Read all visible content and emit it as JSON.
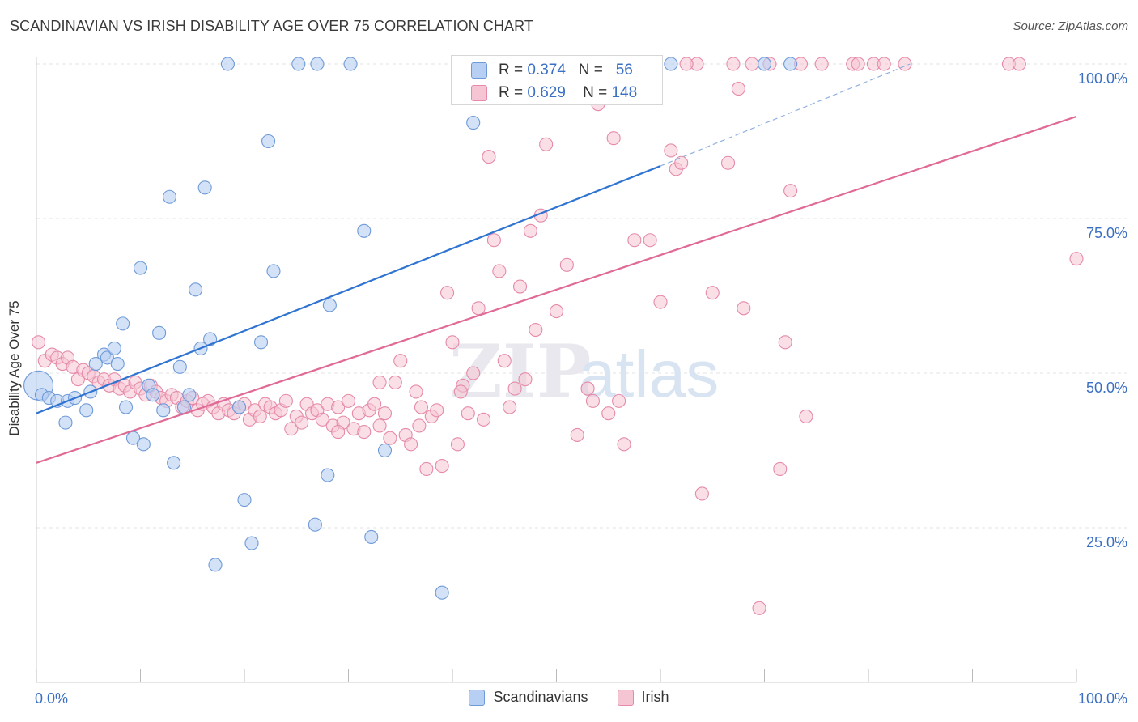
{
  "header": {
    "title": "SCANDINAVIAN VS IRISH DISABILITY AGE OVER 75 CORRELATION CHART",
    "source": "Source: ZipAtlas.com"
  },
  "stats": {
    "blue": {
      "r_label": "R =",
      "r_value": "0.374",
      "n_label": "N =",
      "n_value": "56"
    },
    "pink": {
      "r_label": "R =",
      "r_value": "0.629",
      "n_label": "N =",
      "n_value": "148"
    }
  },
  "legend": {
    "blue": "Scandinavians",
    "pink": "Irish"
  },
  "colors": {
    "blue_fill": "#b7cff2",
    "blue_stroke": "#6e9ad8",
    "blue_line": "#2f74d0",
    "pink_fill": "#f6c5d4",
    "pink_stroke": "#e58aa8",
    "pink_line": "#e06a96",
    "tick_label": "#3b6fc4",
    "grid": "#e3e3e3"
  },
  "chart_data": {
    "type": "scatter",
    "title": "SCANDINAVIAN VS IRISH DISABILITY AGE OVER 75 CORRELATION CHART",
    "xlabel": "",
    "ylabel": "Disability Age Over 75",
    "xlim": [
      0,
      100
    ],
    "ylim": [
      0,
      100
    ],
    "x_ticks": [
      "0.0%",
      "100.0%"
    ],
    "y_ticks": [
      "25.0%",
      "50.0%",
      "75.0%",
      "100.0%"
    ],
    "y_tick_values": [
      25,
      50,
      75,
      100
    ],
    "grid": "horizontal dashed",
    "legend_position": "bottom-center",
    "watermark": "ZIPatlas",
    "series": [
      {
        "name": "Scandinavians",
        "trend": {
          "x0": 0,
          "y0": 43.5,
          "x1": 60,
          "y1": 83.5,
          "dashed_to": [
            84,
            100
          ]
        },
        "points": [
          [
            0.2,
            48.0
          ],
          [
            0.5,
            46.5
          ],
          [
            1.2,
            46.0
          ],
          [
            2.0,
            45.5
          ],
          [
            3.0,
            45.5
          ],
          [
            3.7,
            46.0
          ],
          [
            5.2,
            47.0
          ],
          [
            2.8,
            42.0
          ],
          [
            4.8,
            44.0
          ],
          [
            5.7,
            51.5
          ],
          [
            6.5,
            53.0
          ],
          [
            6.8,
            52.5
          ],
          [
            7.5,
            54.0
          ],
          [
            7.8,
            51.5
          ],
          [
            8.3,
            58.0
          ],
          [
            8.6,
            44.5
          ],
          [
            9.3,
            39.5
          ],
          [
            10.0,
            67.0
          ],
          [
            10.3,
            38.5
          ],
          [
            10.8,
            48.0
          ],
          [
            11.2,
            46.5
          ],
          [
            11.8,
            56.5
          ],
          [
            12.2,
            44.0
          ],
          [
            12.8,
            78.5
          ],
          [
            13.2,
            35.5
          ],
          [
            13.8,
            51.0
          ],
          [
            14.2,
            44.5
          ],
          [
            14.7,
            46.5
          ],
          [
            15.3,
            63.5
          ],
          [
            15.8,
            54.0
          ],
          [
            16.2,
            80.0
          ],
          [
            16.7,
            55.5
          ],
          [
            17.2,
            19.0
          ],
          [
            18.4,
            100.0
          ],
          [
            19.5,
            44.5
          ],
          [
            20.0,
            29.5
          ],
          [
            20.7,
            22.5
          ],
          [
            21.6,
            55.0
          ],
          [
            22.3,
            87.5
          ],
          [
            22.8,
            66.5
          ],
          [
            25.2,
            100.0
          ],
          [
            27.0,
            100.0
          ],
          [
            26.8,
            25.5
          ],
          [
            28.0,
            33.5
          ],
          [
            28.2,
            61.0
          ],
          [
            30.2,
            100.0
          ],
          [
            31.5,
            73.0
          ],
          [
            32.2,
            23.5
          ],
          [
            33.5,
            37.5
          ],
          [
            39.0,
            14.5
          ],
          [
            42.0,
            90.5
          ],
          [
            51.5,
            100.0
          ],
          [
            55.0,
            100.0
          ],
          [
            61.0,
            100.0
          ],
          [
            70.0,
            100.0
          ],
          [
            72.5,
            100.0
          ]
        ]
      },
      {
        "name": "Irish",
        "trend": {
          "x0": 0,
          "y0": 35.5,
          "x1": 100,
          "y1": 91.5
        },
        "points": [
          [
            0.2,
            55.0
          ],
          [
            0.8,
            52.0
          ],
          [
            1.5,
            53.0
          ],
          [
            2.0,
            52.5
          ],
          [
            2.5,
            51.5
          ],
          [
            3.0,
            52.5
          ],
          [
            3.5,
            51.0
          ],
          [
            4.0,
            49.0
          ],
          [
            4.5,
            50.5
          ],
          [
            5.0,
            50.0
          ],
          [
            5.5,
            49.5
          ],
          [
            6.0,
            48.5
          ],
          [
            6.5,
            49.0
          ],
          [
            7.0,
            48.0
          ],
          [
            7.5,
            49.0
          ],
          [
            8.0,
            47.5
          ],
          [
            8.5,
            48.0
          ],
          [
            9.0,
            47.0
          ],
          [
            9.5,
            48.5
          ],
          [
            10.0,
            47.5
          ],
          [
            10.5,
            46.5
          ],
          [
            11.0,
            48.0
          ],
          [
            11.5,
            47.0
          ],
          [
            12.0,
            46.0
          ],
          [
            12.5,
            45.5
          ],
          [
            13.0,
            46.5
          ],
          [
            13.5,
            46.0
          ],
          [
            14.0,
            44.5
          ],
          [
            14.5,
            45.5
          ],
          [
            15.0,
            46.0
          ],
          [
            15.5,
            44.0
          ],
          [
            16.0,
            45.0
          ],
          [
            16.5,
            45.5
          ],
          [
            17.0,
            44.5
          ],
          [
            17.5,
            43.5
          ],
          [
            18.0,
            45.0
          ],
          [
            18.5,
            44.0
          ],
          [
            19.0,
            43.5
          ],
          [
            19.5,
            44.5
          ],
          [
            20.0,
            45.0
          ],
          [
            20.5,
            42.5
          ],
          [
            21.0,
            44.0
          ],
          [
            21.5,
            43.0
          ],
          [
            22.0,
            45.0
          ],
          [
            22.5,
            44.5
          ],
          [
            23.0,
            43.5
          ],
          [
            23.5,
            44.0
          ],
          [
            24.0,
            45.5
          ],
          [
            24.5,
            41.0
          ],
          [
            25.0,
            43.0
          ],
          [
            25.5,
            42.0
          ],
          [
            26.0,
            45.0
          ],
          [
            26.5,
            43.5
          ],
          [
            27.0,
            44.0
          ],
          [
            27.5,
            42.5
          ],
          [
            28.0,
            45.0
          ],
          [
            28.5,
            41.5
          ],
          [
            29.0,
            44.5
          ],
          [
            29.5,
            42.0
          ],
          [
            30.0,
            45.5
          ],
          [
            30.5,
            41.0
          ],
          [
            31.0,
            43.5
          ],
          [
            31.5,
            40.5
          ],
          [
            32.0,
            44.0
          ],
          [
            32.5,
            45.0
          ],
          [
            33.0,
            41.5
          ],
          [
            33.5,
            43.5
          ],
          [
            34.0,
            39.5
          ],
          [
            34.5,
            48.5
          ],
          [
            35.0,
            52.0
          ],
          [
            35.5,
            40.0
          ],
          [
            36.0,
            38.5
          ],
          [
            36.5,
            47.0
          ],
          [
            37.0,
            44.5
          ],
          [
            37.5,
            34.5
          ],
          [
            38.0,
            43.0
          ],
          [
            38.5,
            44.0
          ],
          [
            39.0,
            35.0
          ],
          [
            39.5,
            63.0
          ],
          [
            40.0,
            55.0
          ],
          [
            40.5,
            38.5
          ],
          [
            41.0,
            48.0
          ],
          [
            41.5,
            43.5
          ],
          [
            42.0,
            50.0
          ],
          [
            42.5,
            60.5
          ],
          [
            43.0,
            42.5
          ],
          [
            43.5,
            85.0
          ],
          [
            44.0,
            71.5
          ],
          [
            44.5,
            66.5
          ],
          [
            45.0,
            52.0
          ],
          [
            45.5,
            44.5
          ],
          [
            46.0,
            47.5
          ],
          [
            46.5,
            64.0
          ],
          [
            47.0,
            49.0
          ],
          [
            47.5,
            73.0
          ],
          [
            48.0,
            57.0
          ],
          [
            48.5,
            75.5
          ],
          [
            49.0,
            87.0
          ],
          [
            49.5,
            100.0
          ],
          [
            50.0,
            60.0
          ],
          [
            51.0,
            67.5
          ],
          [
            52.0,
            40.0
          ],
          [
            53.0,
            47.5
          ],
          [
            53.5,
            45.5
          ],
          [
            54.0,
            93.5
          ],
          [
            55.0,
            43.5
          ],
          [
            55.5,
            88.0
          ],
          [
            56.0,
            45.5
          ],
          [
            56.5,
            38.5
          ],
          [
            57.5,
            71.5
          ],
          [
            59.0,
            71.5
          ],
          [
            60.0,
            61.5
          ],
          [
            61.0,
            86.0
          ],
          [
            61.5,
            83.0
          ],
          [
            62.0,
            84.0
          ],
          [
            63.5,
            100.0
          ],
          [
            64.0,
            30.5
          ],
          [
            65.0,
            63.0
          ],
          [
            66.5,
            84.0
          ],
          [
            67.0,
            100.0
          ],
          [
            67.5,
            96.0
          ],
          [
            68.0,
            60.5
          ],
          [
            68.8,
            100.0
          ],
          [
            69.5,
            12.0
          ],
          [
            70.5,
            100.0
          ],
          [
            71.5,
            34.5
          ],
          [
            72.0,
            55.0
          ],
          [
            72.5,
            79.5
          ],
          [
            73.5,
            100.0
          ],
          [
            74.0,
            43.0
          ],
          [
            75.5,
            100.0
          ],
          [
            78.5,
            100.0
          ],
          [
            80.5,
            100.0
          ],
          [
            81.5,
            100.0
          ],
          [
            83.5,
            100.0
          ],
          [
            93.5,
            100.0
          ],
          [
            94.5,
            100.0
          ],
          [
            100.0,
            68.5
          ],
          [
            44.0,
            100.0
          ],
          [
            46.5,
            100.0
          ],
          [
            58.0,
            100.0
          ],
          [
            62.5,
            100.0
          ],
          [
            79.0,
            100.0
          ],
          [
            56.0,
            100.0
          ],
          [
            29.0,
            40.5
          ],
          [
            33.0,
            48.5
          ],
          [
            36.8,
            41.5
          ],
          [
            40.8,
            47.0
          ]
        ]
      }
    ]
  }
}
